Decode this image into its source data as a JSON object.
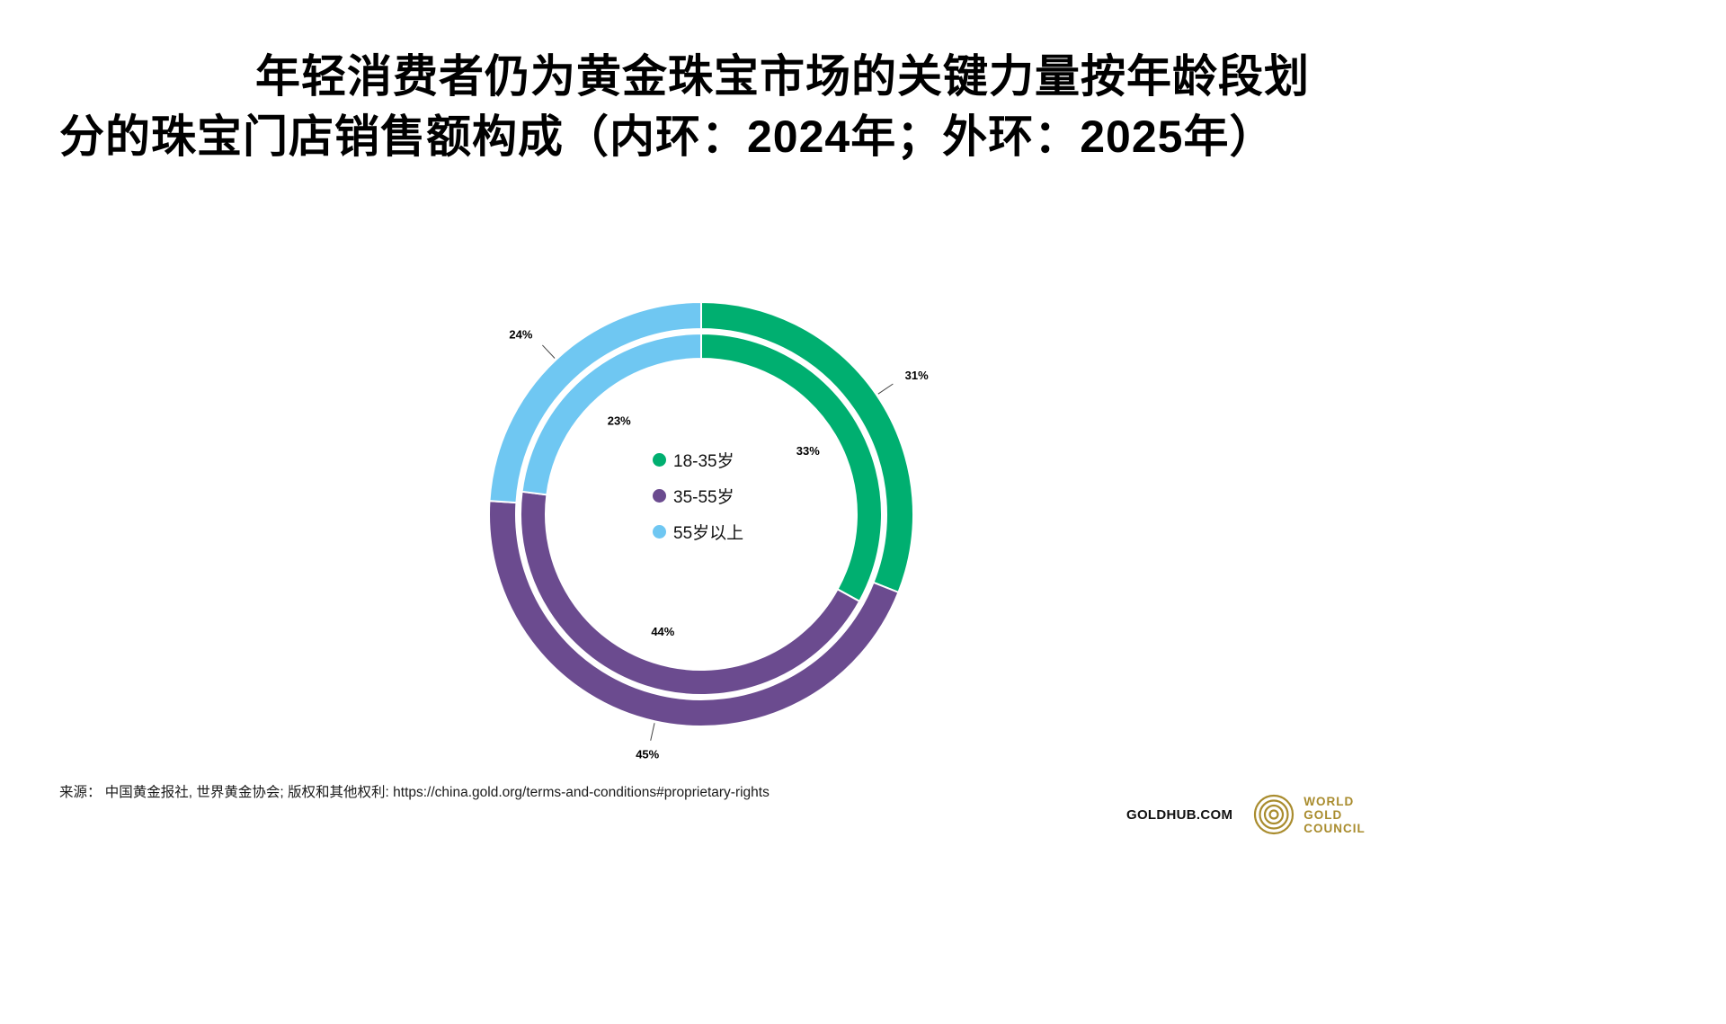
{
  "title": "年轻消费者仍为黄金珠宝市场的关键力量按年龄段划分的珠宝门店销售额构成（内环：2024年；外环：2025年）",
  "legend": {
    "items": [
      {
        "label": "18-35岁",
        "color": "#00AF70"
      },
      {
        "label": "35-55岁",
        "color": "#6B4B8F"
      },
      {
        "label": "55岁以上",
        "color": "#6FC7F2"
      }
    ]
  },
  "chart_data": {
    "type": "pie",
    "subtype": "nested-donut",
    "title": "按年龄段划分的珠宝门店销售额构成（内环：2024年；外环：2025年）",
    "categories": [
      "18-35岁",
      "35-55岁",
      "55岁以上"
    ],
    "series": [
      {
        "name": "2024年（内环）",
        "values": [
          33,
          44,
          23
        ]
      },
      {
        "name": "2025年（外环）",
        "values": [
          31,
          45,
          24
        ]
      }
    ],
    "colors": [
      "#00AF70",
      "#6B4B8F",
      "#6FC7F2"
    ],
    "unit": "%",
    "start_angle_deg": 0,
    "direction": "clockwise",
    "legend_position": "center"
  },
  "source": "来源： 中国黄金报社, 世界黄金协会; 版权和其他权利: https://china.gold.org/terms-and-conditions#proprietary-rights",
  "footer": {
    "goldhub": "GOLDHUB.COM",
    "logo": {
      "lines": [
        "WORLD",
        "GOLD",
        "COUNCIL"
      ],
      "color": "#A98C2E"
    }
  }
}
